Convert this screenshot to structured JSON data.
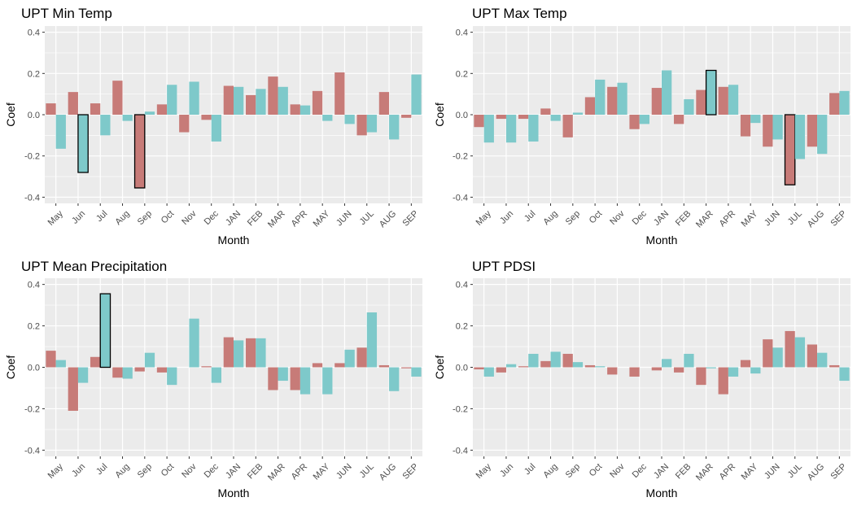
{
  "colors": {
    "series_a": "#c77b78",
    "series_b": "#7ec9ca",
    "panel_bg": "#ebebeb",
    "grid": "#ffffff",
    "highlight_border": "#000000"
  },
  "chart_data": [
    {
      "type": "bar",
      "title": "UPT Min Temp",
      "xlabel": "Month",
      "ylabel": "Coef",
      "ylim": [
        -0.43,
        0.43
      ],
      "yticks": [
        "0.4",
        "0.2",
        "0.0",
        "-0.2",
        "-0.4"
      ],
      "categories": [
        "May",
        "Jun",
        "Jul",
        "Aug",
        "Sep",
        "Oct",
        "Nov",
        "Dec",
        "JAN",
        "FEB",
        "MAR",
        "APR",
        "MAY",
        "JUN",
        "JUL",
        "AUG",
        "SEP"
      ],
      "series": [
        {
          "values": [
            0.055,
            0.11,
            0.055,
            0.165,
            -0.355,
            0.05,
            -0.085,
            -0.025,
            0.14,
            0.095,
            0.185,
            0.05,
            0.115,
            0.205,
            -0.1,
            0.11,
            -0.015
          ]
        },
        {
          "values": [
            -0.165,
            -0.28,
            -0.1,
            -0.03,
            0.015,
            0.145,
            0.16,
            -0.13,
            0.135,
            0.125,
            0.135,
            0.045,
            -0.03,
            -0.045,
            -0.085,
            -0.12,
            0.195
          ]
        }
      ],
      "highlight": [
        [
          1,
          1
        ],
        [
          4,
          0
        ]
      ]
    },
    {
      "type": "bar",
      "title": "UPT Max Temp",
      "xlabel": "Month",
      "ylabel": "Coef",
      "ylim": [
        -0.43,
        0.43
      ],
      "yticks": [
        "0.4",
        "0.2",
        "0.0",
        "-0.2",
        "-0.4"
      ],
      "categories": [
        "May",
        "Jun",
        "Jul",
        "Aug",
        "Sep",
        "Oct",
        "Nov",
        "Dec",
        "JAN",
        "FEB",
        "MAR",
        "APR",
        "MAY",
        "JUN",
        "JUL",
        "AUG",
        "SEP"
      ],
      "series": [
        {
          "values": [
            -0.06,
            -0.02,
            -0.02,
            0.03,
            -0.11,
            0.085,
            0.135,
            -0.07,
            0.13,
            -0.045,
            0.12,
            0.135,
            -0.105,
            -0.155,
            -0.34,
            -0.155,
            0.105
          ]
        },
        {
          "values": [
            -0.135,
            -0.135,
            -0.13,
            -0.03,
            0.01,
            0.17,
            0.155,
            -0.045,
            0.215,
            0.075,
            0.215,
            0.145,
            -0.04,
            -0.12,
            -0.215,
            -0.19,
            0.115
          ]
        }
      ],
      "highlight": [
        [
          10,
          1
        ],
        [
          14,
          0
        ]
      ]
    },
    {
      "type": "bar",
      "title": "UPT Mean Precipitation",
      "xlabel": "Month",
      "ylabel": "Coef",
      "ylim": [
        -0.43,
        0.43
      ],
      "yticks": [
        "0.4",
        "0.2",
        "0.0",
        "-0.2",
        "-0.4"
      ],
      "categories": [
        "May",
        "Jun",
        "Jul",
        "Aug",
        "Sep",
        "Oct",
        "Nov",
        "Dec",
        "JAN",
        "FEB",
        "MAR",
        "APR",
        "MAY",
        "JUN",
        "JUL",
        "AUG",
        "SEP"
      ],
      "series": [
        {
          "values": [
            0.08,
            -0.21,
            0.05,
            -0.05,
            -0.02,
            -0.025,
            0.0,
            0.005,
            0.145,
            0.14,
            -0.11,
            -0.11,
            0.02,
            0.02,
            0.095,
            0.01,
            -0.005
          ]
        },
        {
          "values": [
            0.035,
            -0.075,
            0.355,
            -0.055,
            0.07,
            -0.085,
            0.235,
            -0.075,
            0.13,
            0.14,
            -0.065,
            -0.13,
            -0.13,
            0.085,
            0.265,
            -0.115,
            -0.045
          ]
        }
      ],
      "highlight": [
        [
          2,
          1
        ]
      ]
    },
    {
      "type": "bar",
      "title": "UPT PDSI",
      "xlabel": "Month",
      "ylabel": "Coef",
      "ylim": [
        -0.43,
        0.43
      ],
      "yticks": [
        "0.4",
        "0.2",
        "0.0",
        "-0.2",
        "-0.4"
      ],
      "categories": [
        "May",
        "Jun",
        "Jul",
        "Aug",
        "Sep",
        "Oct",
        "Nov",
        "Dec",
        "JAN",
        "FEB",
        "MAR",
        "APR",
        "MAY",
        "JUN",
        "JUL",
        "AUG",
        "SEP"
      ],
      "series": [
        {
          "values": [
            -0.01,
            -0.025,
            0.005,
            0.03,
            0.065,
            0.01,
            -0.035,
            -0.045,
            -0.015,
            -0.025,
            -0.085,
            -0.13,
            0.035,
            0.135,
            0.175,
            0.11,
            0.01
          ]
        },
        {
          "values": [
            -0.045,
            0.015,
            0.065,
            0.075,
            0.025,
            0.005,
            0.0,
            0.0,
            0.04,
            0.065,
            -0.005,
            -0.045,
            -0.03,
            0.095,
            0.145,
            0.07,
            -0.065
          ]
        }
      ],
      "highlight": []
    }
  ]
}
